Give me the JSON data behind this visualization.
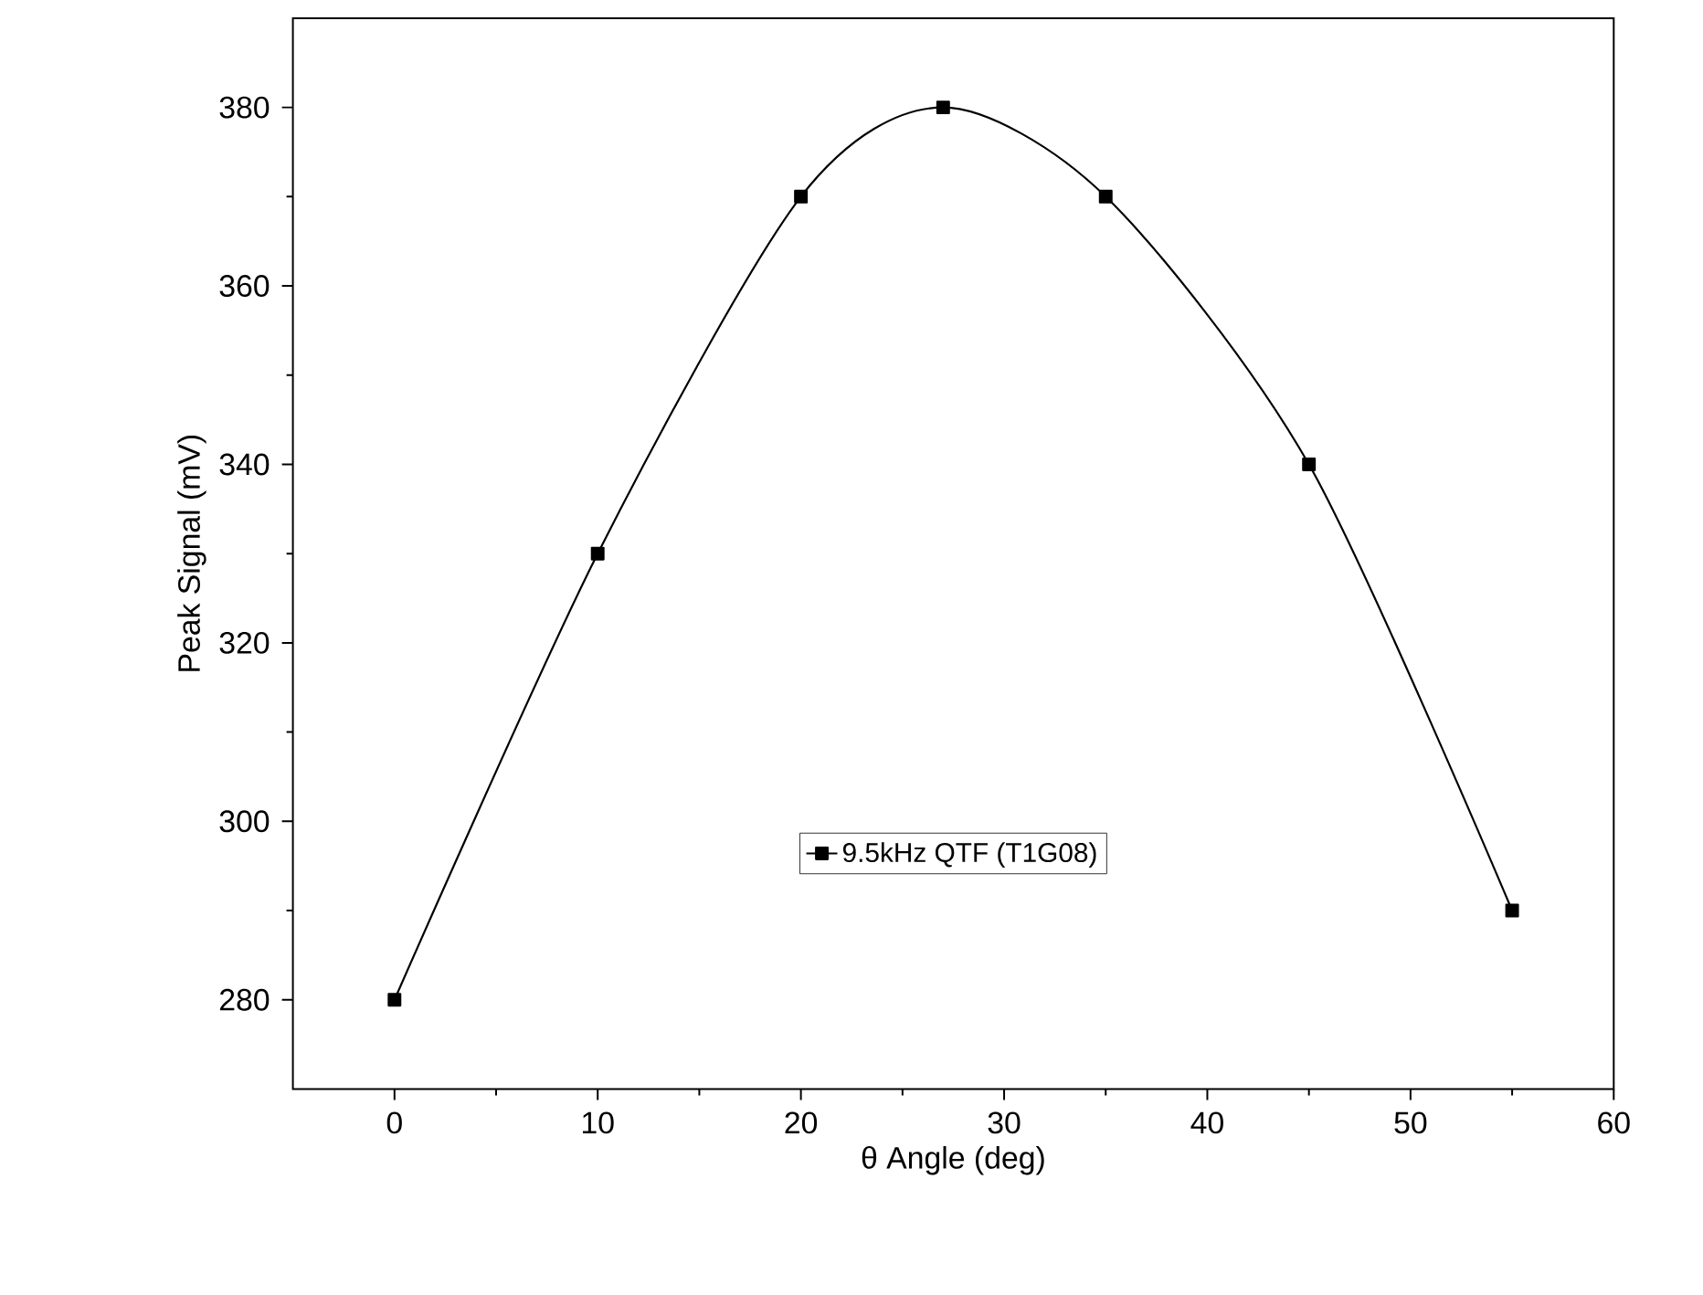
{
  "chart_data": {
    "type": "line",
    "xlabel": "θ Angle (deg)",
    "ylabel": "Peak Signal (mV)",
    "x": [
      0,
      10,
      20,
      27,
      35,
      45,
      55
    ],
    "series": [
      {
        "name": "9.5kHz QTF (T1G08)",
        "color": "#000000",
        "values": [
          280,
          330,
          370,
          380,
          370,
          340,
          290
        ]
      }
    ],
    "xlim": [
      -5,
      60
    ],
    "ylim": [
      270,
      390
    ],
    "xticks": [
      0,
      10,
      20,
      30,
      40,
      50,
      60
    ],
    "yticks": [
      280,
      300,
      320,
      340,
      360,
      380
    ],
    "marker": "square",
    "line_style": "solid",
    "legend": "bottom",
    "grid": false
  }
}
